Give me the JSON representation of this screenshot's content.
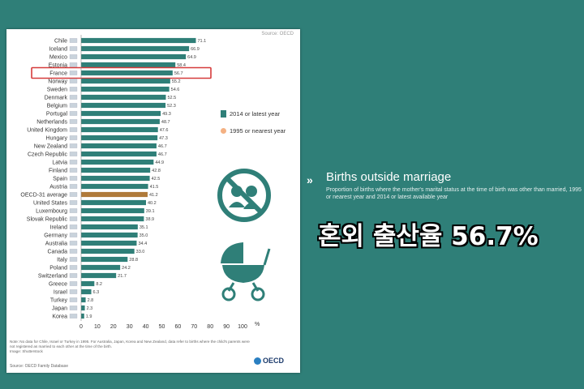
{
  "chart_data": {
    "type": "bar",
    "orientation": "horizontal",
    "categories": [
      "Chile",
      "Iceland",
      "Mexico",
      "Estonia",
      "France",
      "Norway",
      "Sweden",
      "Denmark",
      "Belgium",
      "Portugal",
      "Netherlands",
      "United Kingdom",
      "Hungary",
      "New Zealand",
      "Czech Republic",
      "Latvia",
      "Finland",
      "Spain",
      "Austria",
      "OECD-31 average",
      "United States",
      "Luxembourg",
      "Slovak Republic",
      "Ireland",
      "Germany",
      "Australia",
      "Canada",
      "Italy",
      "Poland",
      "Switzerland",
      "Greece",
      "Israel",
      "Turkey",
      "Japan",
      "Korea"
    ],
    "series": [
      {
        "name": "2014 or latest year",
        "values": [
          71.1,
          66.9,
          64.9,
          58.4,
          56.7,
          55.2,
          54.6,
          52.5,
          52.3,
          49.3,
          48.7,
          47.6,
          47.3,
          46.7,
          46.7,
          44.9,
          42.8,
          42.5,
          41.5,
          41.2,
          40.2,
          39.1,
          38.9,
          35.1,
          35.0,
          34.4,
          33.0,
          28.8,
          24.2,
          21.7,
          8.2,
          6.3,
          2.8,
          2.3,
          1.9
        ]
      }
    ],
    "data_labels": [
      "71.1",
      "66.9",
      "64.9",
      "58.4",
      "56.7",
      "55.2",
      "54.6",
      "52.5",
      "52.3",
      "49.3",
      "48.7",
      "47.6",
      "47.3",
      "46.7",
      "46.7",
      "44.9",
      "42.8",
      "42.5",
      "41.5",
      "41.2",
      "40.2",
      "39.1",
      "38.9",
      "35.1",
      "35.0",
      "34.4",
      "33.0",
      "28.8",
      "24.2",
      "21.7",
      "8.2",
      "6.3",
      "2.8",
      "2.3",
      "1.9"
    ],
    "highlight": "France",
    "average_category": "OECD-31 average",
    "xlim": [
      0,
      100
    ],
    "x_ticks": [
      "0",
      "10",
      "20",
      "30",
      "40",
      "50",
      "60",
      "70",
      "80",
      "90",
      "100"
    ],
    "x_unit": "%",
    "legend": [
      "2014 or latest year",
      "1995 or nearest year"
    ],
    "legend_position": "right",
    "colors": {
      "bar": "#2f7f78",
      "average_bar": "#b07a3a",
      "highlight_box": "#d63b3b",
      "nearest_dot": "#f4b183"
    }
  },
  "source_top": "Source: OECD",
  "note": "Note: No data for Chile, Israel or Turkey in 1995. For Australia, Japan, Korea and New Zealand, data refer to births where the child's parents were not registered as married to each other at the time of the birth.",
  "credit": "Image: Shutterstock",
  "source_bottom": "Source: OECD Family Database",
  "logo_text": "OECD",
  "headline": {
    "title": "Births outside marriage",
    "subtitle": "Proportion of births where the mother's marital status at the time of birth was other than married, 1995 or nearest year and 2014 or latest available year"
  },
  "korean_caption": "혼외 출산율 56.7%",
  "icons": [
    "no-marriage-icon",
    "baby-carriage-icon"
  ]
}
